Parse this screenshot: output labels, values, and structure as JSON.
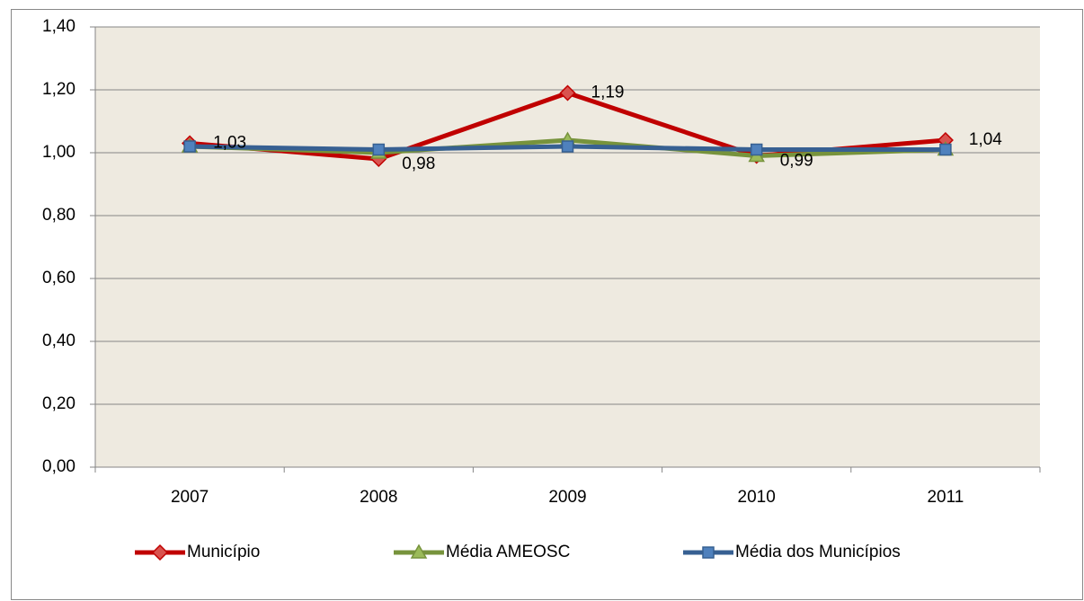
{
  "chart_data": {
    "type": "line",
    "categories": [
      "2007",
      "2008",
      "2009",
      "2010",
      "2011"
    ],
    "series": [
      {
        "name": "Município",
        "color": "#c00000",
        "marker": "diamond",
        "marker_color": "#d9534f",
        "values": [
          1.03,
          0.98,
          1.19,
          0.99,
          1.04
        ],
        "value_labels": [
          "1,03",
          "0,98",
          "1,19",
          "0,99",
          "1,04"
        ]
      },
      {
        "name": "Média AMEOSC",
        "color": "#77933c",
        "marker": "triangle",
        "marker_color": "#9bbb59",
        "values": [
          1.02,
          1.0,
          1.04,
          0.99,
          1.01
        ]
      },
      {
        "name": "Média dos Municípios",
        "color": "#376092",
        "marker": "square",
        "marker_color": "#4f81bd",
        "values": [
          1.02,
          1.01,
          1.02,
          1.01,
          1.01
        ]
      }
    ],
    "ylim": [
      0,
      1.4
    ],
    "yticks": [
      {
        "value": 0,
        "label": "0,00"
      },
      {
        "value": 0.2,
        "label": "0,20"
      },
      {
        "value": 0.4,
        "label": "0,40"
      },
      {
        "value": 0.6,
        "label": "0,60"
      },
      {
        "value": 0.8,
        "label": "0,80"
      },
      {
        "value": 1.0,
        "label": "1,00"
      },
      {
        "value": 1.2,
        "label": "1,20"
      },
      {
        "value": 1.4,
        "label": "1,40"
      }
    ],
    "grid": true,
    "plot_background": "#eeeae0",
    "legend": "bottom"
  }
}
